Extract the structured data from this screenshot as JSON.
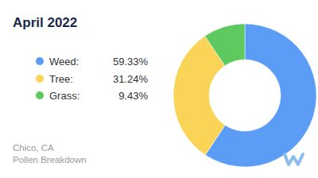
{
  "chart_data": {
    "type": "donut",
    "title": "April 2022",
    "categories": [
      "Weed:",
      "Tree:",
      "Grass:"
    ],
    "values": [
      59.33,
      31.24,
      9.43
    ],
    "value_labels": [
      "59.33%",
      "31.24%",
      "9.43%"
    ],
    "colors": [
      "#5b9cf6",
      "#f9d456",
      "#5ec95f"
    ],
    "legend": "left",
    "annotations": [
      "Chico, CA",
      "Pollen Breakdown"
    ]
  }
}
